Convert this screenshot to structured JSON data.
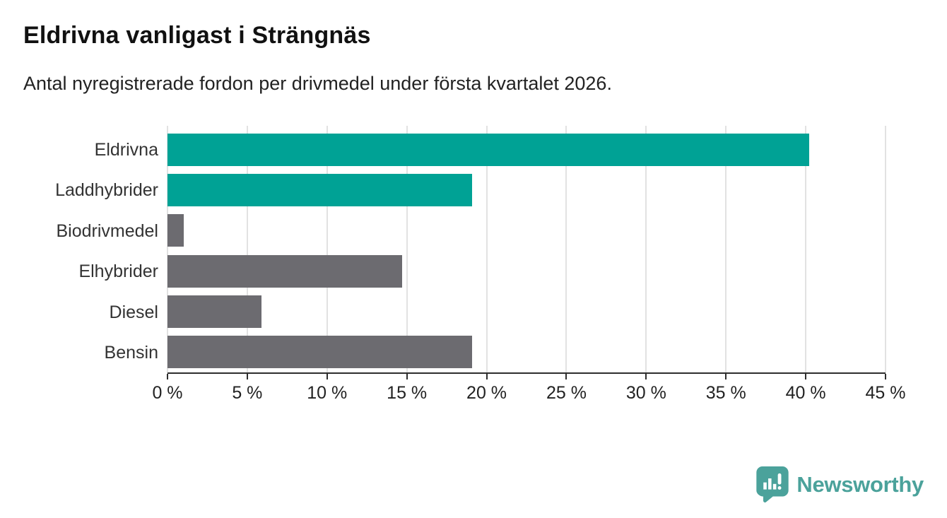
{
  "chart_data": {
    "type": "bar",
    "orientation": "horizontal",
    "title": "Eldrivna vanligast i Strängnäs",
    "subtitle": "Antal nyregistrerade fordon per drivmedel under första kvartalet 2026.",
    "categories": [
      "Eldrivna",
      "Laddhybrider",
      "Biodrivmedel",
      "Elhybrider",
      "Diesel",
      "Bensin"
    ],
    "values": [
      40.2,
      19.1,
      1.0,
      14.7,
      5.9,
      19.1
    ],
    "unit": "%",
    "bar_colors": [
      "#00a295",
      "#00a295",
      "#6c6b70",
      "#6c6b70",
      "#6c6b70",
      "#6c6b70"
    ],
    "xlim": [
      0,
      45
    ],
    "x_ticks": [
      0,
      5,
      10,
      15,
      20,
      25,
      30,
      35,
      40,
      45
    ],
    "x_tick_labels": [
      "0 %",
      "5 %",
      "10 %",
      "15 %",
      "20 %",
      "25 %",
      "30 %",
      "35 %",
      "40 %",
      "45 %"
    ],
    "grid": "vertical",
    "legend": "none"
  },
  "branding": {
    "logo_text": "Newsworthy",
    "logo_icon": "newsworthy-speech-bubble-bar-chart-icon",
    "logo_color": "#4ba29b"
  },
  "colors": {
    "accent_teal": "#00a295",
    "bar_gray": "#6c6b70",
    "gridline": "#e2e2e2",
    "axis_line": "#2e2e2e",
    "title_text": "#111111",
    "body_text": "#222222"
  }
}
